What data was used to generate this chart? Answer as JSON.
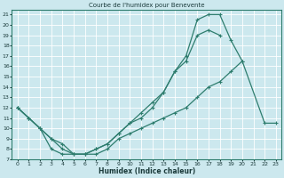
{
  "title": "Courbe de l'humidex pour Benevente",
  "xlabel": "Humidex (Indice chaleur)",
  "bg_color": "#cce8ee",
  "grid_color": "#b0d8e0",
  "line_color": "#2e7d6e",
  "xlim": [
    -0.5,
    23.5
  ],
  "ylim": [
    7,
    21.5
  ],
  "xticks": [
    0,
    1,
    2,
    3,
    4,
    5,
    6,
    7,
    8,
    9,
    10,
    11,
    12,
    13,
    14,
    15,
    16,
    17,
    18,
    19,
    20,
    21,
    22,
    23
  ],
  "yticks": [
    7,
    8,
    9,
    10,
    11,
    12,
    13,
    14,
    15,
    16,
    17,
    18,
    19,
    20,
    21
  ],
  "line1_x": [
    0,
    1,
    2,
    3,
    4,
    5,
    6,
    7,
    8,
    9,
    10,
    11,
    12,
    13,
    14,
    15,
    16,
    17,
    18
  ],
  "line1_y": [
    12,
    11,
    10,
    8,
    7.5,
    7.5,
    7.5,
    8.0,
    8.5,
    9.5,
    10.5,
    11.5,
    12.5,
    13.5,
    15.5,
    16.5,
    19.0,
    19.5,
    19.0
  ],
  "line2_x": [
    0,
    1,
    2,
    3,
    4,
    5,
    6,
    7,
    8,
    9,
    10,
    11,
    12,
    13,
    14,
    15,
    16,
    17,
    18,
    19,
    20
  ],
  "line2_y": [
    12,
    11,
    10,
    9,
    8,
    7.5,
    7.5,
    8.0,
    8.5,
    9.5,
    10.5,
    11.0,
    12.0,
    13.5,
    15.5,
    17.0,
    20.5,
    21.0,
    21.0,
    18.5,
    16.5
  ],
  "line3_x": [
    0,
    1,
    2,
    3,
    4,
    5,
    6,
    7,
    8,
    9,
    10,
    11,
    12,
    13,
    14,
    15,
    16,
    17,
    18,
    19,
    20,
    22,
    23
  ],
  "line3_y": [
    12,
    11,
    10,
    9,
    8.5,
    7.5,
    7.5,
    7.5,
    8.0,
    9.0,
    9.5,
    10.0,
    10.5,
    11.0,
    11.5,
    12.0,
    13.0,
    14.0,
    14.5,
    15.5,
    16.5,
    10.5,
    10.5
  ]
}
